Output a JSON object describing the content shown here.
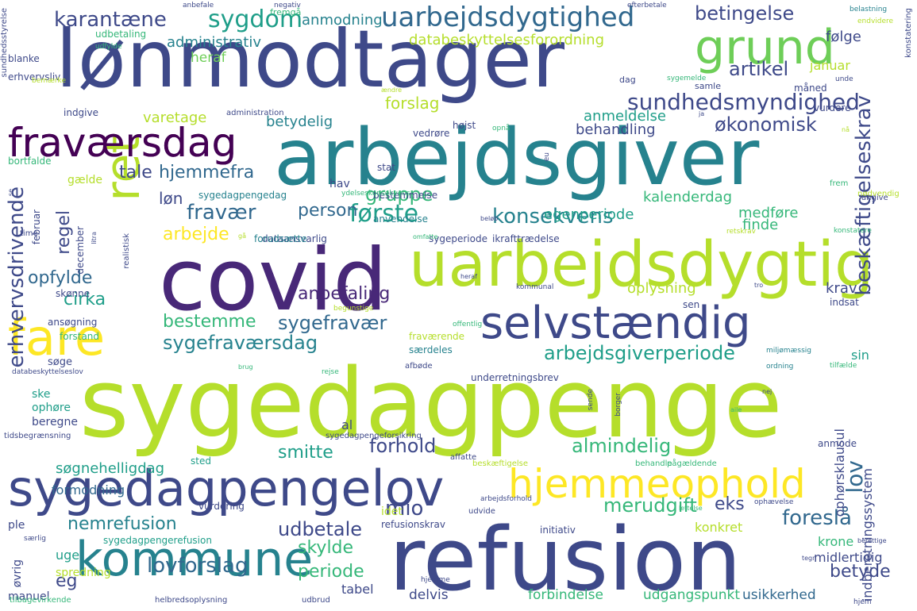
{
  "palette": {
    "dark_purple": "#440154",
    "purple": "#482878",
    "indigo": "#3e4989",
    "blue": "#31688e",
    "teal_blue": "#26828e",
    "teal": "#1f9e89",
    "green": "#35b779",
    "lime": "#6ece58",
    "yellow_green": "#b5de2b",
    "yellow": "#fde725"
  },
  "words": [
    {
      "text": "sygedagpenge",
      "color": "#b5de2b"
    },
    {
      "text": "refusion",
      "color": "#3e4989"
    },
    {
      "text": "lønmodtager",
      "color": "#3e4989"
    },
    {
      "text": "arbejdsgiver",
      "color": "#26828e"
    },
    {
      "text": "covid",
      "color": "#482878"
    },
    {
      "text": "uarbejdsdygtig",
      "color": "#b5de2b"
    },
    {
      "text": "sygedagpengelov",
      "color": "#3e4989"
    },
    {
      "text": "selvstændig",
      "color": "#3e4989"
    },
    {
      "text": "hjemmeophold",
      "color": "#fde725"
    },
    {
      "text": "grund",
      "color": "#6ece58"
    },
    {
      "text": "ret",
      "color": "#b5de2b"
    },
    {
      "text": "fare",
      "color": "#fde725"
    },
    {
      "text": "fraværsdag",
      "color": "#440154"
    },
    {
      "text": "kommune",
      "color": "#26828e"
    },
    {
      "text": "uarbejdsdygtighed",
      "color": "#31688e"
    },
    {
      "text": "sygdom",
      "color": "#1f9e89"
    },
    {
      "text": "karantæne",
      "color": "#3e4989"
    },
    {
      "text": "betingelse",
      "color": "#3e4989"
    },
    {
      "text": "sundhedsmyndighed",
      "color": "#3e4989"
    },
    {
      "text": "artikel",
      "color": "#3e4989"
    },
    {
      "text": "økonomisk",
      "color": "#3e4989"
    },
    {
      "text": "beskæftigelseskrav",
      "color": "#3e4989"
    },
    {
      "text": "erhvervsdrivende",
      "color": "#3e4989"
    },
    {
      "text": "lov",
      "color": "#31688e"
    },
    {
      "text": "fraværsdag",
      "color": "#440154"
    },
    {
      "text": "fravær",
      "color": "#31688e"
    },
    {
      "text": "første",
      "color": "#1f9e89"
    },
    {
      "text": "konsekvens",
      "color": "#26828e"
    },
    {
      "text": "gruppe",
      "color": "#35b779"
    },
    {
      "text": "hjemmefra",
      "color": "#31688e"
    },
    {
      "text": "tale",
      "color": "#3e4989"
    },
    {
      "text": "arbejde",
      "color": "#fde725"
    },
    {
      "text": "person",
      "color": "#31688e"
    },
    {
      "text": "løn",
      "color": "#3e4989"
    },
    {
      "text": "regel",
      "color": "#3e4989"
    },
    {
      "text": "opfylde",
      "color": "#31688e"
    },
    {
      "text": "cirka",
      "color": "#1f9e89"
    },
    {
      "text": "anbefaling",
      "color": "#482878"
    },
    {
      "text": "sygefravær",
      "color": "#31688e"
    },
    {
      "text": "sygefraværsdag",
      "color": "#26828e"
    },
    {
      "text": "arbejdsgiverperiode",
      "color": "#1f9e89"
    },
    {
      "text": "bestemme",
      "color": "#35b779"
    },
    {
      "text": "forhold",
      "color": "#3e4989"
    },
    {
      "text": "almindelig",
      "color": "#35b779"
    },
    {
      "text": "smitte",
      "color": "#1f9e89"
    },
    {
      "text": "mio",
      "color": "#3e4989"
    },
    {
      "text": "udbetale",
      "color": "#3e4989"
    },
    {
      "text": "nemrefusion",
      "color": "#26828e"
    },
    {
      "text": "skylde",
      "color": "#35b779"
    },
    {
      "text": "periode",
      "color": "#35b779"
    },
    {
      "text": "lovforslag",
      "color": "#31688e"
    },
    {
      "text": "eg",
      "color": "#3e4989"
    },
    {
      "text": "foreslå",
      "color": "#31688e"
    },
    {
      "text": "eks",
      "color": "#3e4989"
    },
    {
      "text": "merudgift",
      "color": "#35b779"
    },
    {
      "text": "betyde",
      "color": "#3e4989"
    },
    {
      "text": "databeskyttelsesforordning",
      "color": "#b5de2b"
    },
    {
      "text": "administrativ",
      "color": "#26828e"
    },
    {
      "text": "anmodning",
      "color": "#26828e"
    },
    {
      "text": "heraf",
      "color": "#6ece58"
    },
    {
      "text": "forslag",
      "color": "#b5de2b"
    },
    {
      "text": "varetage",
      "color": "#b5de2b"
    },
    {
      "text": "betydelig",
      "color": "#26828e"
    },
    {
      "text": "anmeldelse",
      "color": "#1f9e89"
    },
    {
      "text": "behandling",
      "color": "#3e4989"
    },
    {
      "text": "kalenderdag",
      "color": "#35b779"
    },
    {
      "text": "egenperiode",
      "color": "#1f9e89"
    },
    {
      "text": "medføre",
      "color": "#35b779"
    },
    {
      "text": "finde",
      "color": "#35b779"
    },
    {
      "text": "januar",
      "color": "#b5de2b"
    },
    {
      "text": "følge",
      "color": "#3e4989"
    },
    {
      "text": "oplysning",
      "color": "#b5de2b"
    },
    {
      "text": "krav",
      "color": "#3e4989"
    },
    {
      "text": "ophørsklausul",
      "color": "#3e4989"
    },
    {
      "text": "indberetningssystem",
      "color": "#3e4989"
    },
    {
      "text": "sin",
      "color": "#1f9e89"
    },
    {
      "text": "søgnehelligdag",
      "color": "#1f9e89"
    },
    {
      "text": "formodning",
      "color": "#31688e"
    },
    {
      "text": "uge",
      "color": "#1f9e89"
    },
    {
      "text": "tabel",
      "color": "#3e4989"
    },
    {
      "text": "delvis",
      "color": "#3e4989"
    },
    {
      "text": "forbindelse",
      "color": "#35b779"
    },
    {
      "text": "udgangspunkt",
      "color": "#35b779"
    },
    {
      "text": "usikkerhed",
      "color": "#31688e"
    },
    {
      "text": "konkret",
      "color": "#b5de2b"
    },
    {
      "text": "krone",
      "color": "#35b779"
    },
    {
      "text": "midlertidig",
      "color": "#3e4989"
    },
    {
      "text": "ske",
      "color": "#1f9e89"
    },
    {
      "text": "ophøre",
      "color": "#1f9e89"
    },
    {
      "text": "beregne",
      "color": "#3e4989"
    },
    {
      "text": "al",
      "color": "#3e4989"
    },
    {
      "text": "sted",
      "color": "#1f9e89"
    },
    {
      "text": "vurdering",
      "color": "#3e4989"
    },
    {
      "text": "spredning",
      "color": "#b5de2b"
    },
    {
      "text": "manuel",
      "color": "#3e4989"
    },
    {
      "text": "øvrig",
      "color": "#3e4989"
    },
    {
      "text": "ple",
      "color": "#3e4989"
    },
    {
      "text": "idet",
      "color": "#b5de2b"
    },
    {
      "text": "refusionskrav",
      "color": "#3e4989"
    },
    {
      "text": "initiativ",
      "color": "#3e4989"
    },
    {
      "text": "anmode",
      "color": "#3e4989"
    },
    {
      "text": "sygedagpengerefusion",
      "color": "#1f9e89"
    },
    {
      "text": "februar",
      "color": "#3e4989"
    },
    {
      "text": "december",
      "color": "#3e4989"
    },
    {
      "text": "hav",
      "color": "#3e4989"
    },
    {
      "text": "stat",
      "color": "#3e4989"
    },
    {
      "text": "gælde",
      "color": "#b5de2b"
    },
    {
      "text": "bortfalde",
      "color": "#35b779"
    },
    {
      "text": "sygedagpengedag",
      "color": "#26828e"
    },
    {
      "text": "bestemmelse",
      "color": "#3e4989"
    },
    {
      "text": "anvendelse",
      "color": "#26828e"
    },
    {
      "text": "dataansvarlig",
      "color": "#3e4989"
    },
    {
      "text": "forudsætte",
      "color": "#26828e"
    },
    {
      "text": "sygeperiode",
      "color": "#3e4989"
    },
    {
      "text": "ikrafttrædelse",
      "color": "#3e4989"
    },
    {
      "text": "ansøgning",
      "color": "#3e4989"
    },
    {
      "text": "forstand",
      "color": "#35b779"
    },
    {
      "text": "søge",
      "color": "#3e4989"
    },
    {
      "text": "skønne",
      "color": "#3e4989"
    },
    {
      "text": "særdeles",
      "color": "#26828e"
    },
    {
      "text": "fraværende",
      "color": "#b5de2b"
    },
    {
      "text": "underretningsbrev",
      "color": "#3e4989"
    },
    {
      "text": "sen",
      "color": "#3e4989"
    },
    {
      "text": "indsat",
      "color": "#3e4989"
    },
    {
      "text": "blanke",
      "color": "#3e4989"
    },
    {
      "text": "erhvervsliv",
      "color": "#3e4989"
    },
    {
      "text": "indgive",
      "color": "#3e4989"
    },
    {
      "text": "administration",
      "color": "#3e4989"
    },
    {
      "text": "udbetaling",
      "color": "#35b779"
    },
    {
      "text": "vedrøre",
      "color": "#3e4989"
    },
    {
      "text": "højst",
      "color": "#3e4989"
    },
    {
      "text": "vurdere",
      "color": "#3e4989"
    },
    {
      "text": "måned",
      "color": "#3e4989"
    },
    {
      "text": "samle",
      "color": "#3e4989"
    },
    {
      "text": "dag",
      "color": "#3e4989"
    },
    {
      "text": "fremgå",
      "color": "#35b779"
    },
    {
      "text": "tidsbegrænsning",
      "color": "#3e4989"
    },
    {
      "text": "tilbagevirkende",
      "color": "#35b779"
    },
    {
      "text": "helbredsoplysning",
      "color": "#3e4989"
    },
    {
      "text": "udbrud",
      "color": "#3e4989"
    },
    {
      "text": "sygedagpengeforsikring",
      "color": "#3e4989"
    },
    {
      "text": "afbøde",
      "color": "#3e4989"
    },
    {
      "text": "affatte",
      "color": "#3e4989"
    },
    {
      "text": "beskæftigelse",
      "color": "#b5de2b"
    },
    {
      "text": "pågældende",
      "color": "#35b779"
    },
    {
      "text": "udvide",
      "color": "#3e4989"
    },
    {
      "text": "realistisk",
      "color": "#3e4989"
    },
    {
      "text": "ydelseskonsekvens",
      "color": "#35b779"
    },
    {
      "text": "sundhedsstyrelse",
      "color": "#3e4989"
    },
    {
      "text": "konstatering",
      "color": "#3e4989"
    },
    {
      "text": "konstatere",
      "color": "#35b779"
    },
    {
      "text": "frem",
      "color": "#35b779"
    },
    {
      "text": "nødvendig",
      "color": "#b5de2b"
    },
    {
      "text": "angive",
      "color": "#3e4989"
    },
    {
      "text": "retskrav",
      "color": "#b5de2b"
    },
    {
      "text": "behandle",
      "color": "#35b779"
    },
    {
      "text": "ophævelse",
      "color": "#3e4989"
    },
    {
      "text": "miljømæssig",
      "color": "#26828e"
    },
    {
      "text": "ordning",
      "color": "#26828e"
    },
    {
      "text": "offentlig",
      "color": "#35b779"
    },
    {
      "text": "begunstige",
      "color": "#b5de2b"
    },
    {
      "text": "kommunal",
      "color": "#3e4989"
    },
    {
      "text": "særlig",
      "color": "#3e4989"
    },
    {
      "text": "berettige",
      "color": "#3e4989"
    },
    {
      "text": "tegn",
      "color": "#3e4989"
    },
    {
      "text": "hjem",
      "color": "#3e4989"
    },
    {
      "text": "lettelse",
      "color": "#35b779"
    },
    {
      "text": "arbejdsforhold",
      "color": "#3e4989"
    },
    {
      "text": "anbefale",
      "color": "#3e4989"
    },
    {
      "text": "negativ",
      "color": "#3e4989"
    },
    {
      "text": "belastning",
      "color": "#26828e"
    },
    {
      "text": "endvidere",
      "color": "#b5de2b"
    },
    {
      "text": "efterbetale",
      "color": "#3e4989"
    },
    {
      "text": "udfylde",
      "color": "#35b779"
    },
    {
      "text": "sygemelde",
      "color": "#35b779"
    },
    {
      "text": "opnå",
      "color": "#35b779"
    },
    {
      "text": "ja",
      "color": "#3e4989"
    },
    {
      "text": "nå",
      "color": "#b5de2b"
    },
    {
      "text": "unde",
      "color": "#3e4989"
    },
    {
      "text": "bemærke",
      "color": "#b5de2b"
    },
    {
      "text": "ændre",
      "color": "#b5de2b"
    },
    {
      "text": "se",
      "color": "#3e4989"
    },
    {
      "text": "litra",
      "color": "#3e4989"
    },
    {
      "text": "time",
      "color": "#3e4989"
    },
    {
      "text": "omfatte",
      "color": "#35b779"
    },
    {
      "text": "heraf",
      "color": "#3e4989"
    },
    {
      "text": "gå",
      "color": "#b5de2b"
    },
    {
      "text": "tro",
      "color": "#3e4989"
    },
    {
      "text": "nej",
      "color": "#3e4989"
    },
    {
      "text": "tilfælde",
      "color": "#35b779"
    },
    {
      "text": "sende",
      "color": "#3e4989"
    },
    {
      "text": "rejse",
      "color": "#35b779"
    },
    {
      "text": "borger",
      "color": "#3e4989"
    },
    {
      "text": "databeskyttelseslov",
      "color": "#3e4989"
    },
    {
      "text": "brug",
      "color": "#35b779"
    },
    {
      "text": "hjemme",
      "color": "#3e4989"
    },
    {
      "text": "aile",
      "color": "#35b779"
    },
    {
      "text": "eu",
      "color": "#3e4989"
    },
    {
      "text": "beløb",
      "color": "#3e4989"
    }
  ]
}
